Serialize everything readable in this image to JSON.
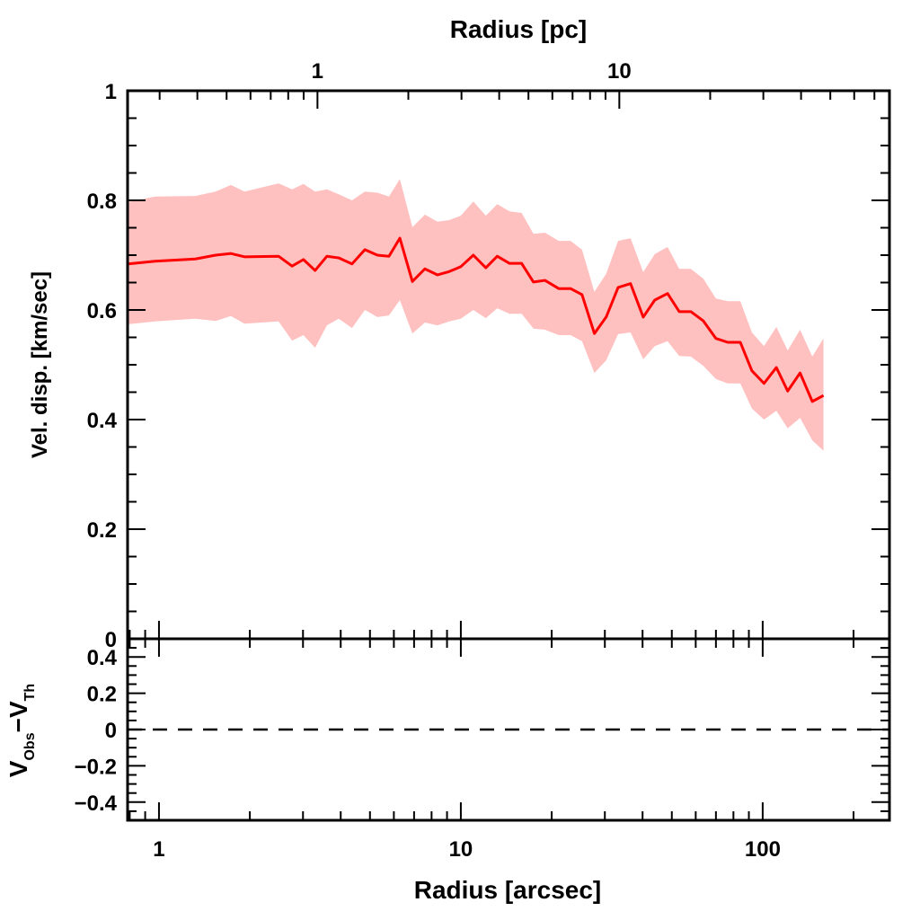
{
  "chart_data": {
    "type": "line",
    "top_panel": {
      "ylabel": "Vel. disp. [km/sec]",
      "ylim": [
        0,
        1
      ],
      "yticks": [
        0,
        0.2,
        0.4,
        0.6,
        0.8,
        1
      ],
      "ytick_labels": [
        "0",
        "0.2",
        "0.4",
        "0.6",
        "0.8",
        "1"
      ],
      "top_xlabel": "Radius [pc]",
      "top_xticks": [
        1,
        10
      ],
      "top_xtick_labels": [
        "1",
        "10"
      ],
      "arcsec_per_pc": 3.35,
      "series": [
        {
          "name": "velocity dispersion",
          "color": "#ff0000",
          "band_color": "#ffc0c0",
          "x": [
            0.79,
            0.97,
            1.32,
            1.54,
            1.73,
            1.92,
            2.49,
            2.76,
            3.01,
            3.29,
            3.6,
            3.94,
            4.36,
            4.81,
            5.29,
            5.78,
            6.28,
            6.91,
            7.6,
            8.37,
            9.15,
            10.0,
            11.0,
            12.1,
            13.2,
            14.5,
            15.9,
            17.4,
            19.0,
            21.1,
            23.1,
            25.2,
            27.7,
            30.3,
            33.2,
            36.5,
            40.2,
            43.9,
            48.4,
            52.9,
            57.8,
            63.6,
            70.0,
            76.6,
            84.3,
            92.1,
            101,
            111,
            121,
            133,
            146,
            159
          ],
          "y": [
            0.684,
            0.689,
            0.693,
            0.7,
            0.703,
            0.697,
            0.698,
            0.68,
            0.692,
            0.672,
            0.698,
            0.695,
            0.684,
            0.71,
            0.7,
            0.698,
            0.731,
            0.652,
            0.675,
            0.664,
            0.67,
            0.679,
            0.7,
            0.677,
            0.698,
            0.685,
            0.685,
            0.651,
            0.654,
            0.639,
            0.639,
            0.628,
            0.557,
            0.587,
            0.641,
            0.648,
            0.587,
            0.618,
            0.63,
            0.597,
            0.597,
            0.58,
            0.548,
            0.541,
            0.541,
            0.489,
            0.466,
            0.495,
            0.452,
            0.485,
            0.433,
            0.444
          ],
          "upper": [
            0.797,
            0.807,
            0.808,
            0.816,
            0.828,
            0.816,
            0.831,
            0.82,
            0.83,
            0.816,
            0.82,
            0.811,
            0.8,
            0.816,
            0.814,
            0.807,
            0.839,
            0.751,
            0.774,
            0.761,
            0.764,
            0.772,
            0.798,
            0.772,
            0.793,
            0.78,
            0.777,
            0.739,
            0.741,
            0.726,
            0.726,
            0.71,
            0.633,
            0.666,
            0.726,
            0.731,
            0.669,
            0.702,
            0.715,
            0.675,
            0.675,
            0.657,
            0.621,
            0.616,
            0.616,
            0.559,
            0.534,
            0.569,
            0.526,
            0.564,
            0.515,
            0.548
          ],
          "lower": [
            0.574,
            0.579,
            0.584,
            0.58,
            0.589,
            0.575,
            0.579,
            0.544,
            0.554,
            0.531,
            0.572,
            0.584,
            0.567,
            0.6,
            0.587,
            0.59,
            0.618,
            0.557,
            0.577,
            0.572,
            0.579,
            0.584,
            0.6,
            0.585,
            0.603,
            0.593,
            0.593,
            0.566,
            0.564,
            0.554,
            0.554,
            0.543,
            0.485,
            0.508,
            0.556,
            0.559,
            0.51,
            0.534,
            0.543,
            0.516,
            0.515,
            0.498,
            0.474,
            0.466,
            0.466,
            0.42,
            0.4,
            0.416,
            0.384,
            0.403,
            0.362,
            0.343
          ]
        }
      ]
    },
    "bottom_panel": {
      "ylabel_main": "V",
      "ylabel_sub1": "Obs",
      "ylabel_minus": "−",
      "ylabel_sub2": "Th",
      "ylim": [
        -0.5,
        0.5
      ],
      "yticks": [
        0.4,
        0.2,
        0,
        -0.2,
        -0.4
      ],
      "ytick_labels": [
        "0.4",
        "0.2",
        "0",
        "−0.2",
        "−0.4"
      ],
      "reference_line": {
        "y": 0,
        "style": "dashed"
      }
    },
    "xlabel": "Radius [arcsec]",
    "xscale": "log",
    "xlim": [
      0.787,
      263
    ],
    "xticks": [
      1,
      10,
      100
    ],
    "xtick_labels": [
      "1",
      "10",
      "100"
    ],
    "grid": false
  }
}
